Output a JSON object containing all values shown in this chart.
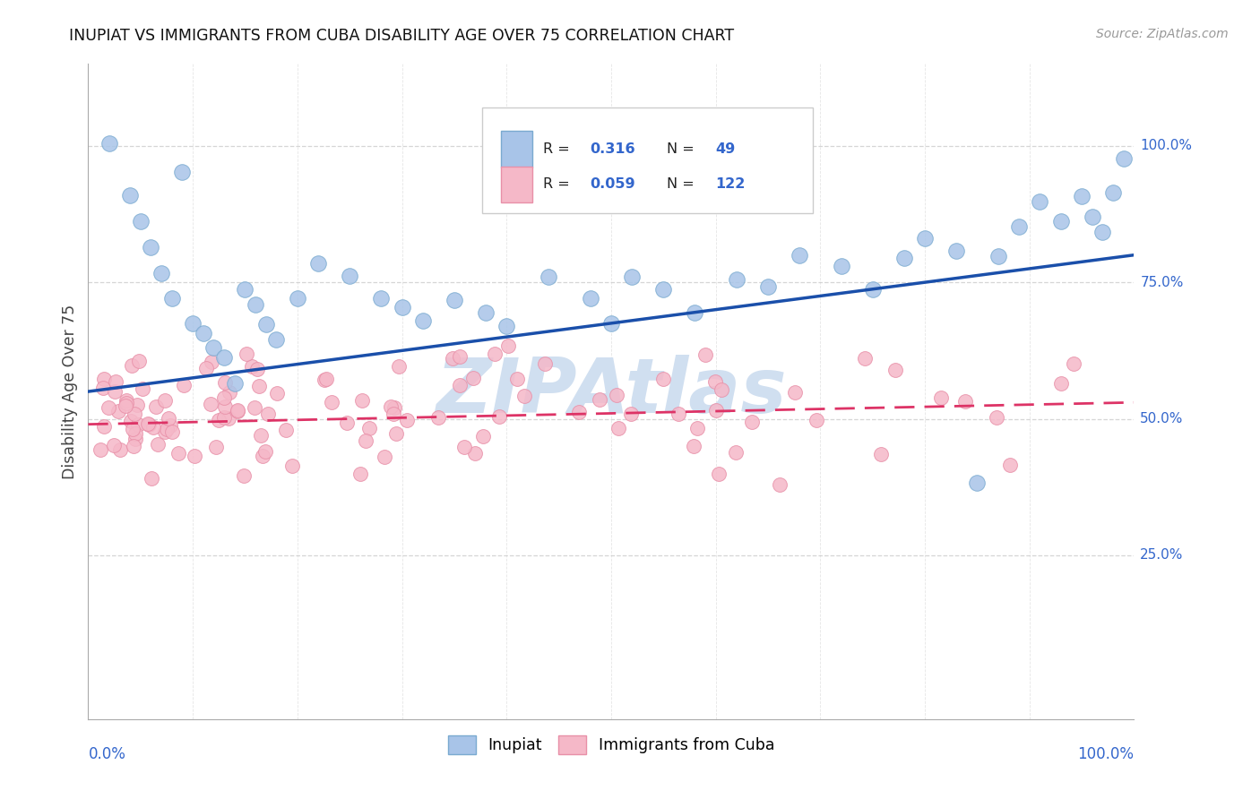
{
  "title": "INUPIAT VS IMMIGRANTS FROM CUBA DISABILITY AGE OVER 75 CORRELATION CHART",
  "source_text": "Source: ZipAtlas.com",
  "ylabel": "Disability Age Over 75",
  "inupiat_color": "#a8c4e8",
  "inupiat_edge": "#7aaad0",
  "cuba_color": "#f5b8c8",
  "cuba_edge": "#e890a8",
  "inupiat_R": 0.316,
  "inupiat_N": 49,
  "cuba_R": 0.059,
  "cuba_N": 122,
  "inupiat_line_color": "#1a4faa",
  "cuba_line_color": "#dd3366",
  "watermark_color": "#d0dff0",
  "background_color": "#ffffff",
  "grid_color": "#cccccc",
  "blue_text": "#3366cc",
  "title_color": "#111111",
  "ylabel_color": "#444444"
}
